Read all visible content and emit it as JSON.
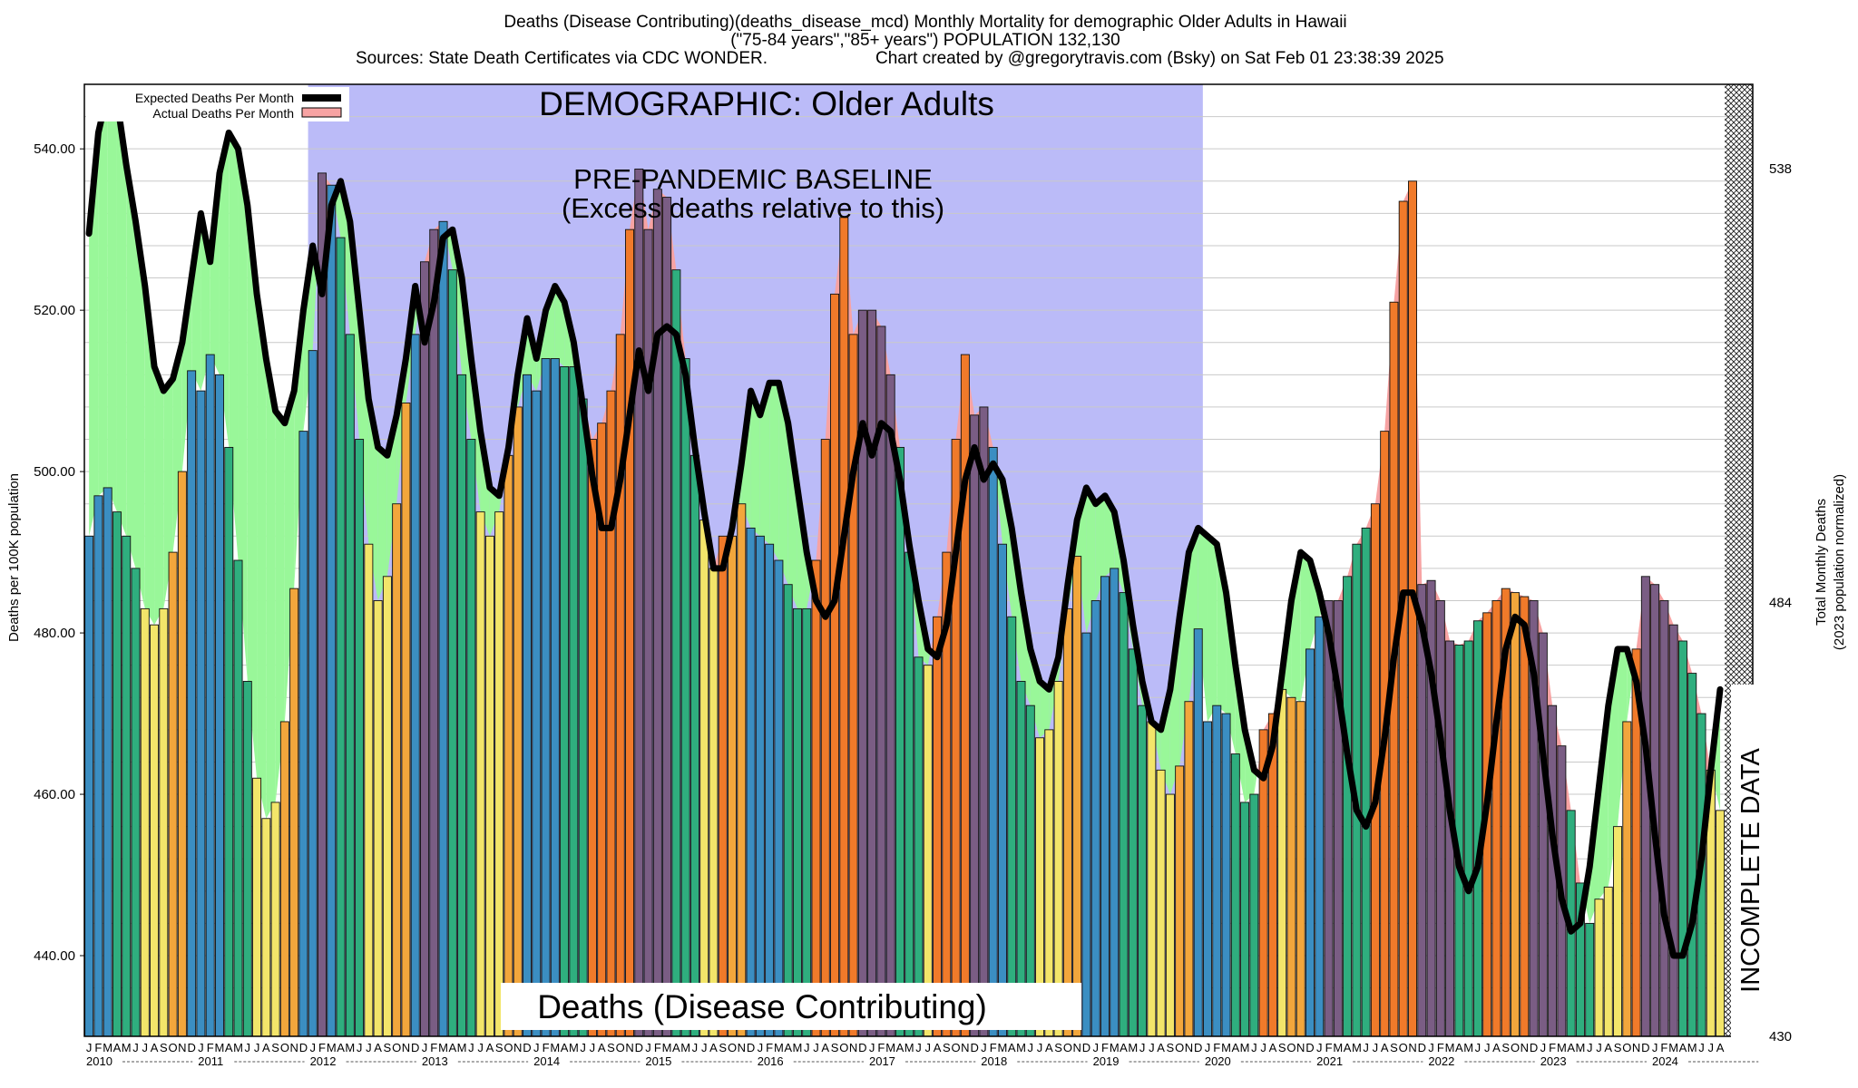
{
  "header": {
    "title": "Deaths (Disease Contributing)(deaths_disease_mcd) Monthly Mortality for demographic Older Adults in Hawaii",
    "subtitle": "(\"75-84 years\",\"85+ years\") POPULATION 132,130",
    "sources": "Sources: State Death Certificates via CDC WONDER.",
    "credit": "Chart created by @gregorytravis.com (Bsky) on Sat Feb 01 23:38:39 2025"
  },
  "annotations": {
    "demographic": "DEMOGRAPHIC: Older Adults",
    "baseline_line1": "PRE-PANDEMIC BASELINE",
    "baseline_line2": "(Excess deaths relative to this)",
    "incomplete": "INCOMPLETE DATA",
    "bottom_label": "Deaths (Disease Contributing)"
  },
  "colors": {
    "baseline_band": "#bbbbf8",
    "deficit_fill": "#99f799",
    "excess_fill": "#f7a3a3",
    "expected_line": "#000000",
    "bar_winter": "#3b8ec2",
    "bar_spring": "#2fae7e",
    "bar_summer": "#f3e56a",
    "bar_fall": "#f2a63c",
    "bar_excess_fall": "#f07a2a",
    "bar_excess_winter": "#7a5d84"
  },
  "chart_data": {
    "type": "bar",
    "title": "Deaths (Disease Contributing)(deaths_disease_mcd) Monthly Mortality for demographic Older Adults in Hawaii",
    "ylabel": "Deaths per 100K population",
    "ylabel_right": [
      "Total Monthly Deaths",
      "(2023 population normalized)"
    ],
    "ylim": [
      430,
      548
    ],
    "yticks": [
      "440.00",
      "460.00",
      "480.00",
      "500.00",
      "520.00",
      "540.00"
    ],
    "right_ticks": [
      "538",
      "484",
      "430"
    ],
    "month_letters": [
      "J",
      "F",
      "M",
      "A",
      "M",
      "J",
      "J",
      "A",
      "S",
      "O",
      "N",
      "D"
    ],
    "years": [
      "2010",
      "2011",
      "2012",
      "2013",
      "2014",
      "2015",
      "2016",
      "2017",
      "2018",
      "2019",
      "2020",
      "2021",
      "2022",
      "2023",
      "2024"
    ],
    "baseline_years": [
      "2012",
      "2019"
    ],
    "incomplete_from": "2024-09",
    "grid": true,
    "legend_position": "top-left",
    "series": [
      {
        "name": "Expected Deaths Per Month",
        "type": "line",
        "values": [
          529.5,
          542.0,
          547.0,
          546.0,
          538.0,
          531.0,
          523.0,
          513.0,
          510.0,
          511.5,
          516.0,
          524.0,
          532.0,
          526.0,
          537.0,
          542.0,
          540.0,
          533.0,
          522.0,
          514.0,
          507.5,
          506.0,
          510.0,
          520.0,
          528.0,
          522.0,
          533.0,
          536.0,
          531.0,
          520.0,
          509.0,
          503.0,
          502.0,
          507.0,
          514.0,
          523.0,
          516.0,
          521.0,
          529.0,
          530.0,
          524.0,
          514.0,
          505.0,
          498.0,
          497.0,
          503.0,
          512.0,
          519.0,
          514.0,
          520.0,
          523.0,
          521.0,
          516.0,
          508.0,
          499.5,
          493.0,
          493.0,
          499.0,
          507.0,
          515.0,
          510.0,
          517.0,
          518.0,
          517.0,
          512.0,
          503.0,
          495.0,
          488.0,
          488.0,
          493.0,
          501.0,
          510.0,
          507.0,
          511.0,
          511.0,
          506.0,
          498.0,
          490.0,
          484.0,
          482.0,
          484.0,
          492.0,
          500.0,
          506.0,
          502.0,
          506.0,
          505.0,
          499.0,
          491.0,
          484.0,
          478.0,
          477.0,
          481.0,
          490.0,
          499.0,
          503.0,
          499.0,
          501.0,
          499.0,
          493.0,
          485.0,
          478.0,
          474.0,
          473.0,
          477.0,
          486.0,
          494.0,
          498.0,
          496.0,
          497.0,
          495.0,
          489.0,
          481.0,
          474.0,
          469.0,
          468.0,
          473.0,
          482.0,
          490.0,
          493.0,
          492.0,
          491.0,
          485.0,
          476.0,
          468.0,
          463.0,
          462.0,
          466.0,
          475.0,
          484.0,
          490.0,
          489.0,
          485.0,
          480.0,
          473.0,
          465.0,
          458.0,
          456.0,
          459.0,
          467.0,
          477.0,
          485.0,
          485.0,
          481.0,
          475.0,
          467.0,
          458.0,
          451.0,
          448.0,
          451.0,
          459.0,
          469.0,
          478.0,
          482.0,
          481.0,
          475.0,
          465.0,
          455.0,
          447.0,
          443.0,
          444.0,
          451.0,
          461.0,
          471.0,
          478.0,
          478.0,
          474.0,
          466.0,
          455.0,
          445.0,
          440.0,
          440.0,
          444.0,
          452.0,
          463.0,
          473.0
        ]
      },
      {
        "name": "Actual Deaths Per Month",
        "type": "bar",
        "values": [
          492.0,
          497.0,
          498.0,
          495.0,
          492.0,
          488.0,
          483.0,
          481.0,
          483.0,
          490.0,
          500.0,
          512.5,
          510.0,
          514.5,
          512.0,
          503.0,
          489.0,
          474.0,
          462.0,
          457.0,
          459.0,
          469.0,
          485.5,
          505.0,
          515.0,
          537.0,
          535.5,
          529.0,
          517.0,
          504.0,
          491.0,
          484.0,
          487.0,
          496.0,
          508.5,
          517.0,
          526.0,
          530.0,
          531.0,
          525.0,
          512.0,
          504.0,
          495.0,
          492.0,
          495.0,
          502.0,
          508.0,
          512.0,
          510.0,
          514.0,
          514.0,
          513.0,
          513.0,
          509.0,
          504.0,
          506.0,
          510.0,
          517.0,
          530.0,
          537.5,
          530.0,
          535.0,
          534.0,
          525.0,
          514.0,
          502.0,
          494.0,
          488.0,
          492.0,
          492.0,
          496.0,
          493.0,
          492.0,
          491.0,
          489.0,
          486.0,
          483.0,
          483.0,
          489.0,
          504.0,
          522.0,
          531.5,
          517.0,
          520.0,
          520.0,
          518.0,
          512.0,
          503.0,
          490.0,
          477.0,
          476.0,
          482.0,
          490.0,
          504.0,
          514.5,
          507.0,
          508.0,
          503.0,
          491.0,
          482.0,
          474.0,
          471.0,
          467.0,
          468.0,
          474.0,
          483.0,
          489.5,
          480.0,
          484.0,
          487.0,
          488.0,
          485.0,
          478.0,
          471.0,
          469.0,
          463.0,
          460.0,
          463.5,
          471.5,
          480.5,
          469.0,
          471.0,
          470.0,
          465.0,
          459.0,
          460.0,
          468.0,
          470.0,
          473.0,
          472.0,
          471.5,
          478.0,
          482.0,
          484.0,
          484.0,
          487.0,
          491.0,
          493.0,
          496.0,
          505.0,
          521.0,
          533.5,
          536.0,
          486.0,
          486.5,
          484.0,
          479.0,
          478.5,
          479.0,
          481.5,
          482.5,
          484.0,
          485.5,
          485.0,
          484.5,
          484.0,
          480.0,
          471.0,
          466.0,
          458.0,
          449.0,
          444.0,
          447.0,
          448.5,
          456.0,
          469.0,
          478.0,
          487.0,
          486.0,
          484.0,
          481.0,
          479.0,
          475.0,
          470.0,
          463.0,
          458.0
        ]
      }
    ]
  },
  "legend": {
    "expected_label": "Expected Deaths Per Month",
    "actual_label": "Actual Deaths Per Month"
  }
}
